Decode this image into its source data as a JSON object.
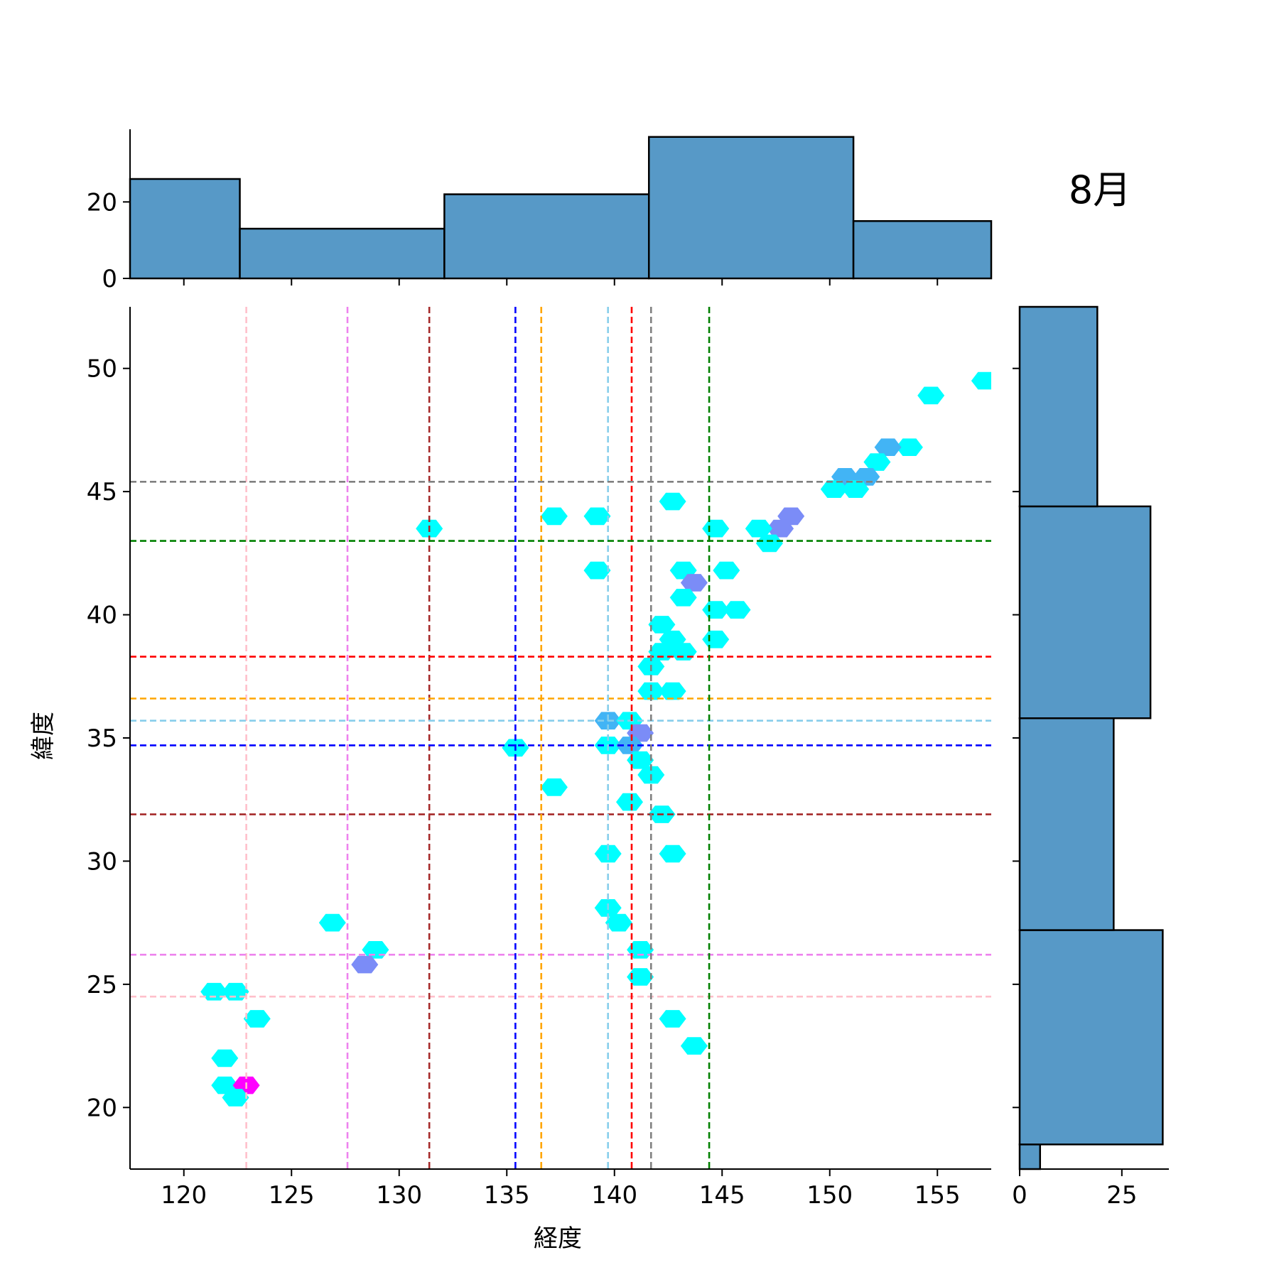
{
  "chart_data": {
    "type": "hexbin-jointplot",
    "annotation": "8月",
    "xlabel": "経度",
    "ylabel": "緯度",
    "xlim": [
      117.5,
      157.5
    ],
    "ylim": [
      17.5,
      52.5
    ],
    "xticks": [
      120,
      125,
      130,
      135,
      140,
      145,
      150,
      155
    ],
    "yticks": [
      20,
      25,
      30,
      35,
      40,
      45,
      50
    ],
    "colors": {
      "bar_fill": "#5799c7",
      "bar_edge": "#000000",
      "hex_low": "#00ffff",
      "hex_mid": "#42b4f5",
      "hex_high": "#7b8cf7",
      "hex_max": "#ff00ff"
    },
    "hexbins": [
      {
        "x": 157.2,
        "y": 49.5,
        "n": 1
      },
      {
        "x": 154.7,
        "y": 48.9,
        "n": 1
      },
      {
        "x": 153.7,
        "y": 46.8,
        "n": 1
      },
      {
        "x": 152.7,
        "y": 46.8,
        "n": 2
      },
      {
        "x": 152.2,
        "y": 46.2,
        "n": 1
      },
      {
        "x": 151.7,
        "y": 45.6,
        "n": 2
      },
      {
        "x": 150.7,
        "y": 45.6,
        "n": 2
      },
      {
        "x": 150.2,
        "y": 45.1,
        "n": 1
      },
      {
        "x": 151.2,
        "y": 45.1,
        "n": 1
      },
      {
        "x": 142.7,
        "y": 44.6,
        "n": 1
      },
      {
        "x": 148.2,
        "y": 44.0,
        "n": 3
      },
      {
        "x": 147.7,
        "y": 43.5,
        "n": 3
      },
      {
        "x": 146.7,
        "y": 43.5,
        "n": 1
      },
      {
        "x": 147.2,
        "y": 42.9,
        "n": 1
      },
      {
        "x": 144.7,
        "y": 43.5,
        "n": 1
      },
      {
        "x": 131.4,
        "y": 43.5,
        "n": 1
      },
      {
        "x": 137.2,
        "y": 44.0,
        "n": 1
      },
      {
        "x": 139.2,
        "y": 44.0,
        "n": 1
      },
      {
        "x": 139.2,
        "y": 41.8,
        "n": 1
      },
      {
        "x": 143.2,
        "y": 41.8,
        "n": 1
      },
      {
        "x": 145.2,
        "y": 41.8,
        "n": 1
      },
      {
        "x": 143.7,
        "y": 41.3,
        "n": 3
      },
      {
        "x": 143.2,
        "y": 40.7,
        "n": 1
      },
      {
        "x": 144.7,
        "y": 40.2,
        "n": 1
      },
      {
        "x": 145.7,
        "y": 40.2,
        "n": 1
      },
      {
        "x": 142.2,
        "y": 39.6,
        "n": 1
      },
      {
        "x": 142.7,
        "y": 39.0,
        "n": 1
      },
      {
        "x": 144.7,
        "y": 39.0,
        "n": 1
      },
      {
        "x": 142.2,
        "y": 38.5,
        "n": 1
      },
      {
        "x": 143.2,
        "y": 38.5,
        "n": 1
      },
      {
        "x": 141.7,
        "y": 37.9,
        "n": 1
      },
      {
        "x": 141.7,
        "y": 36.9,
        "n": 1
      },
      {
        "x": 142.7,
        "y": 36.9,
        "n": 1
      },
      {
        "x": 139.7,
        "y": 35.7,
        "n": 2
      },
      {
        "x": 140.7,
        "y": 35.7,
        "n": 1
      },
      {
        "x": 141.2,
        "y": 35.2,
        "n": 3
      },
      {
        "x": 139.7,
        "y": 34.7,
        "n": 1
      },
      {
        "x": 140.7,
        "y": 34.7,
        "n": 2
      },
      {
        "x": 135.4,
        "y": 34.6,
        "n": 1
      },
      {
        "x": 141.2,
        "y": 34.1,
        "n": 1
      },
      {
        "x": 141.7,
        "y": 33.5,
        "n": 1
      },
      {
        "x": 137.2,
        "y": 33.0,
        "n": 1
      },
      {
        "x": 140.7,
        "y": 32.4,
        "n": 1
      },
      {
        "x": 142.2,
        "y": 31.9,
        "n": 1
      },
      {
        "x": 139.7,
        "y": 30.3,
        "n": 1
      },
      {
        "x": 142.7,
        "y": 30.3,
        "n": 1
      },
      {
        "x": 139.7,
        "y": 28.1,
        "n": 1
      },
      {
        "x": 140.2,
        "y": 27.5,
        "n": 1
      },
      {
        "x": 126.9,
        "y": 27.5,
        "n": 1
      },
      {
        "x": 128.9,
        "y": 26.4,
        "n": 1
      },
      {
        "x": 128.4,
        "y": 25.8,
        "n": 3
      },
      {
        "x": 141.2,
        "y": 26.4,
        "n": 1
      },
      {
        "x": 141.2,
        "y": 25.3,
        "n": 1
      },
      {
        "x": 121.4,
        "y": 24.7,
        "n": 1
      },
      {
        "x": 122.4,
        "y": 24.7,
        "n": 1
      },
      {
        "x": 123.4,
        "y": 23.6,
        "n": 1
      },
      {
        "x": 142.7,
        "y": 23.6,
        "n": 1
      },
      {
        "x": 143.7,
        "y": 22.5,
        "n": 1
      },
      {
        "x": 121.9,
        "y": 22.0,
        "n": 1
      },
      {
        "x": 121.9,
        "y": 20.9,
        "n": 1
      },
      {
        "x": 122.9,
        "y": 20.9,
        "n": 5
      },
      {
        "x": 122.4,
        "y": 20.4,
        "n": 1
      }
    ],
    "reference_lines": [
      {
        "lon": 122.9,
        "lat": 24.5,
        "color": "#ffc0cb"
      },
      {
        "lon": 127.6,
        "lat": 26.2,
        "color": "#ee82ee"
      },
      {
        "lon": 131.4,
        "lat": 31.9,
        "color": "#a52a2a"
      },
      {
        "lon": 135.4,
        "lat": 34.7,
        "color": "#0000ff"
      },
      {
        "lon": 136.6,
        "lat": 36.6,
        "color": "#ffa500"
      },
      {
        "lon": 139.7,
        "lat": 35.7,
        "color": "#87ceeb"
      },
      {
        "lon": 140.8,
        "lat": 38.3,
        "color": "#ff0000"
      },
      {
        "lon": 141.7,
        "lat": 45.4,
        "color": "#808080"
      },
      {
        "lon": 144.4,
        "lat": 43.0,
        "color": "#008000"
      }
    ],
    "x_marginal": {
      "yticks": [
        0,
        20
      ],
      "ylim": [
        0,
        39
      ],
      "bins": [
        {
          "from": 117.5,
          "to": 122.6,
          "count": 26
        },
        {
          "from": 122.6,
          "to": 132.1,
          "count": 13
        },
        {
          "from": 132.1,
          "to": 141.6,
          "count": 22
        },
        {
          "from": 141.6,
          "to": 151.1,
          "count": 37
        },
        {
          "from": 151.1,
          "to": 157.5,
          "count": 15
        }
      ]
    },
    "y_marginal": {
      "xticks": [
        0,
        25
      ],
      "xlim": [
        0,
        36.5
      ],
      "bins": [
        {
          "from": 17.5,
          "to": 18.5,
          "count": 5
        },
        {
          "from": 18.5,
          "to": 27.2,
          "count": 35
        },
        {
          "from": 27.2,
          "to": 35.8,
          "count": 23
        },
        {
          "from": 35.8,
          "to": 44.4,
          "count": 32
        },
        {
          "from": 44.4,
          "to": 52.5,
          "count": 19
        }
      ]
    }
  }
}
